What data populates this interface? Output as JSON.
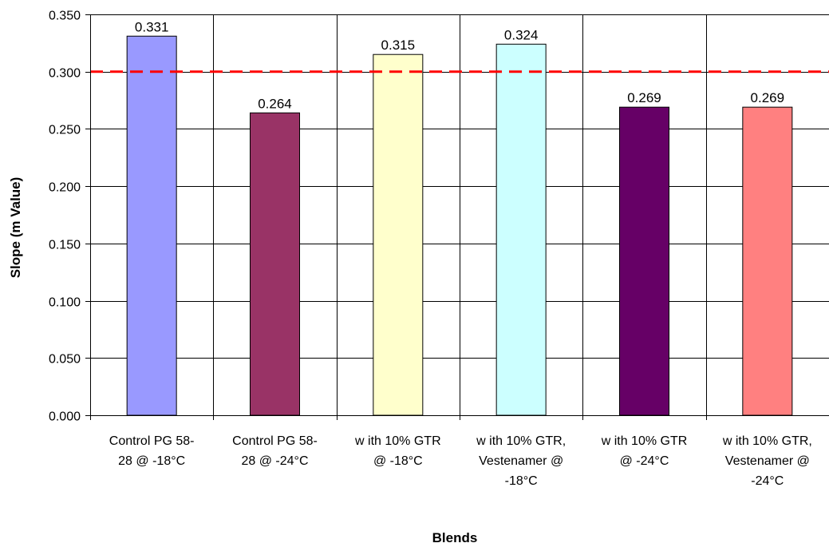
{
  "chart_data": {
    "type": "bar",
    "title": "",
    "xlabel": "Blends",
    "ylabel": "Slope (m Value)",
    "ylim": [
      0,
      0.35
    ],
    "y_ticks": [
      "0.000",
      "0.050",
      "0.100",
      "0.150",
      "0.200",
      "0.250",
      "0.300",
      "0.350"
    ],
    "grid": true,
    "legend": "none",
    "categories": [
      [
        "Control PG 58-",
        "28 @  -18°C"
      ],
      [
        "Control PG 58-",
        "28 @ -24°C"
      ],
      [
        "w ith 10% GTR",
        "@ -18°C"
      ],
      [
        "w ith 10% GTR,",
        "Vestenamer @",
        "-18°C"
      ],
      [
        "w ith 10% GTR",
        "@ -24°C"
      ],
      [
        "w ith 10% GTR,",
        "Vestenamer @",
        "-24°C"
      ]
    ],
    "values": [
      0.331,
      0.264,
      0.315,
      0.324,
      0.269,
      0.269
    ],
    "data_labels": [
      "0.331",
      "0.264",
      "0.315",
      "0.324",
      "0.269",
      "0.269"
    ],
    "bar_colors": [
      "#9999ff",
      "#993366",
      "#ffffcc",
      "#ccffff",
      "#660066",
      "#ff8080"
    ],
    "reference_line": {
      "value": 0.3,
      "color": "#ff0000",
      "style": "dashed"
    }
  }
}
